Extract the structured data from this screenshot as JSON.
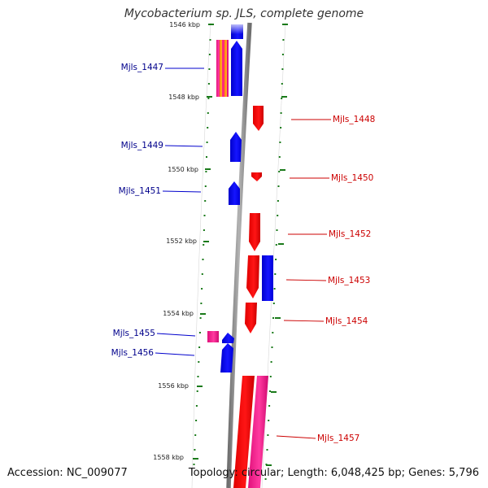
{
  "title": "Mycobacterium sp. JLS, complete genome",
  "footer": {
    "accession": "Accession: NC_009077",
    "topology": "Topology: circular; Length: 6,048,425 bp; Genes: 5,796"
  },
  "colors": {
    "forward": "#0000ff",
    "reverse": "#ff0000",
    "rna": "#ff1493",
    "tick": "#1a7a1a",
    "backbone": "#8c8c8c",
    "label_forward": "#00008b",
    "label_reverse": "#cc0000"
  },
  "scale": {
    "ticks": [
      {
        "kbp": 1546,
        "label": "1546 kbp"
      },
      {
        "kbp": 1548,
        "label": "1548 kbp"
      },
      {
        "kbp": 1550,
        "label": "1550 kbp"
      },
      {
        "kbp": 1552,
        "label": "1552 kbp"
      },
      {
        "kbp": 1554,
        "label": "1554 kbp"
      },
      {
        "kbp": 1556,
        "label": "1556 kbp"
      },
      {
        "kbp": 1558,
        "label": "1558 kbp"
      }
    ]
  },
  "genes": [
    {
      "name": "Mjls_1447",
      "strand": "forward"
    },
    {
      "name": "Mjls_1448",
      "strand": "reverse"
    },
    {
      "name": "Mjls_1449",
      "strand": "forward"
    },
    {
      "name": "Mjls_1450",
      "strand": "reverse"
    },
    {
      "name": "Mjls_1451",
      "strand": "forward"
    },
    {
      "name": "Mjls_1452",
      "strand": "reverse"
    },
    {
      "name": "Mjls_1453",
      "strand": "reverse"
    },
    {
      "name": "Mjls_1454",
      "strand": "reverse"
    },
    {
      "name": "Mjls_1455",
      "strand": "forward"
    },
    {
      "name": "Mjls_1456",
      "strand": "forward"
    },
    {
      "name": "Mjls_1457",
      "strand": "reverse"
    }
  ]
}
